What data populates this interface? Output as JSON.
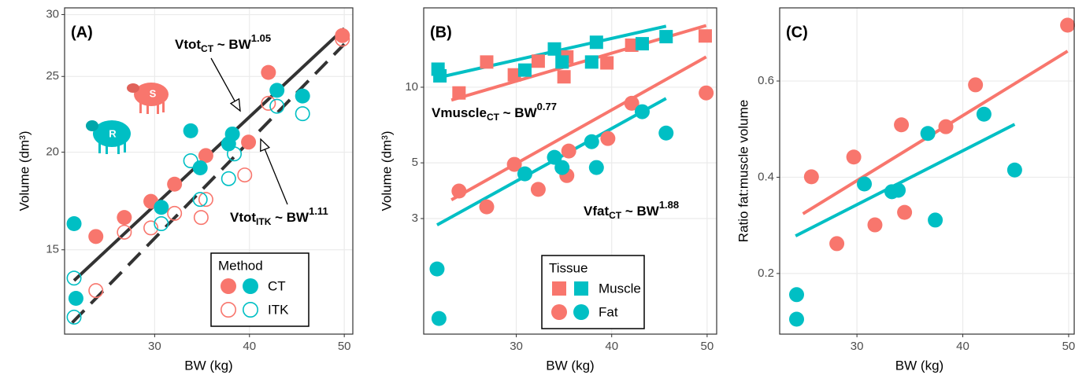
{
  "chart_data": [
    {
      "type": "scatter",
      "panel_label": "(A)",
      "xlabel": "BW (kg)",
      "ylabel": "Volume  (dm³)",
      "xlim": [
        20.5,
        50.9
      ],
      "ylim": [
        11.7,
        30.6
      ],
      "log_y": true,
      "grid": true,
      "xticks": [
        30,
        40,
        50
      ],
      "yticks": [
        15,
        20,
        25,
        30
      ],
      "legend_title": "Method",
      "icon_labels": [
        "S",
        "R"
      ],
      "series": [
        {
          "name": "CT",
          "color": "#F8766D",
          "shape": "circle",
          "filled": true,
          "x": [
            23.8,
            26.8,
            29.6,
            32.1,
            35.4,
            39.9,
            42.0,
            49.8
          ],
          "y": [
            15.6,
            16.5,
            17.3,
            18.2,
            19.8,
            20.6,
            25.3,
            28.2
          ]
        },
        {
          "name": "CT",
          "color": "#00BFC4",
          "shape": "circle",
          "filled": true,
          "x": [
            21.5,
            21.7,
            30.7,
            33.8,
            34.8,
            37.8,
            38.2,
            42.9,
            45.6
          ],
          "y": [
            16.2,
            13.0,
            17.0,
            21.3,
            19.1,
            20.5,
            21.1,
            24.0,
            23.6
          ]
        },
        {
          "name": "ITK",
          "color": "#F8766D",
          "shape": "circle",
          "filled": false,
          "x": [
            23.8,
            26.8,
            29.6,
            32.1,
            34.9,
            35.4,
            39.5,
            42.0,
            49.8
          ],
          "y": [
            13.3,
            15.8,
            16.0,
            16.7,
            16.5,
            17.4,
            18.7,
            23.1,
            27.9
          ]
        },
        {
          "name": "ITK",
          "color": "#00BFC4",
          "shape": "circle",
          "filled": false,
          "x": [
            21.5,
            21.5,
            30.7,
            33.8,
            34.8,
            37.8,
            38.4,
            42.9,
            45.6
          ],
          "y": [
            13.8,
            12.3,
            16.2,
            19.5,
            17.4,
            18.5,
            19.9,
            22.9,
            22.4
          ]
        }
      ],
      "fit_lines": [
        {
          "color": "#333333",
          "dashed": false,
          "x": [
            21.5,
            50.0
          ],
          "y": [
            13.7,
            28.8
          ]
        },
        {
          "color": "#333333",
          "dashed": true,
          "x": [
            21.3,
            50.0
          ],
          "y": [
            12.1,
            27.5
          ]
        }
      ],
      "annotations": [
        {
          "base": "Vtot",
          "sub": "CT",
          "rel": " ~ BW",
          "sup": "1.05"
        },
        {
          "base": "Vtot",
          "sub": "ITK",
          "rel": " ~ BW",
          "sup": "1.11"
        }
      ]
    },
    {
      "type": "scatter",
      "panel_label": "(B)",
      "xlabel": "BW (kg)",
      "ylabel": "Volume  (dm³)",
      "xlim": [
        20.3,
        51.0
      ],
      "ylim": [
        1.04,
        20.7
      ],
      "log_y": true,
      "grid": true,
      "xticks": [
        30,
        40,
        50
      ],
      "yticks": [
        3,
        5,
        10
      ],
      "legend_title": "Tissue",
      "series": [
        {
          "name": "Muscle",
          "color": "#F8766D",
          "shape": "square",
          "filled": true,
          "x": [
            24.0,
            26.9,
            29.8,
            32.3,
            35.3,
            35.0,
            39.5,
            42.1,
            49.8
          ],
          "y": [
            9.49,
            12.6,
            11.2,
            12.7,
            13.2,
            11.0,
            12.5,
            14.7,
            16.0
          ]
        },
        {
          "name": "Muscle",
          "color": "#00BFC4",
          "shape": "square",
          "filled": true,
          "x": [
            21.8,
            22.0,
            30.9,
            34.0,
            34.8,
            37.9,
            38.4,
            43.2,
            45.7
          ],
          "y": [
            11.8,
            11.1,
            11.7,
            14.2,
            12.6,
            12.6,
            15.1,
            14.9,
            15.9
          ]
        },
        {
          "name": "Fat",
          "color": "#F8766D",
          "shape": "circle",
          "filled": true,
          "x": [
            24.0,
            26.9,
            29.8,
            32.3,
            35.3,
            35.5,
            39.6,
            42.1,
            49.9
          ],
          "y": [
            3.86,
            3.34,
            4.93,
            3.92,
            4.45,
            5.57,
            6.25,
            8.63,
            9.49
          ]
        },
        {
          "name": "Fat",
          "color": "#00BFC4",
          "shape": "circle",
          "filled": true,
          "x": [
            21.7,
            21.9,
            30.9,
            34.0,
            34.8,
            37.9,
            38.4,
            43.2,
            45.7
          ],
          "y": [
            1.89,
            1.2,
            4.52,
            5.26,
            4.79,
            6.07,
            4.79,
            7.99,
            6.57
          ]
        }
      ],
      "fit_lines": [
        {
          "color": "#F8766D",
          "dashed": false,
          "x": [
            23.2,
            49.9
          ],
          "y": [
            8.89,
            17.6
          ]
        },
        {
          "color": "#00BFC4",
          "dashed": false,
          "x": [
            21.7,
            45.7
          ],
          "y": [
            10.9,
            17.5
          ]
        },
        {
          "color": "#F8766D",
          "dashed": false,
          "x": [
            23.2,
            49.9
          ],
          "y": [
            3.56,
            13.2
          ]
        },
        {
          "color": "#00BFC4",
          "dashed": false,
          "x": [
            21.7,
            45.7
          ],
          "y": [
            2.83,
            9.02
          ]
        }
      ],
      "annotations": [
        {
          "base": "Vmuscle",
          "sub": "CT",
          "rel": " ~ BW",
          "sup": "0.77"
        },
        {
          "base": "Vfat",
          "sub": "CT",
          "rel": " ~ BW",
          "sup": "1.88"
        }
      ]
    },
    {
      "type": "scatter",
      "panel_label": "(C)",
      "xlabel": "BW (kg)",
      "ylabel": "Ratio fat:muscle volume",
      "xlim": [
        22.7,
        50.6
      ],
      "ylim": [
        0.074,
        0.752
      ],
      "log_y": false,
      "grid": true,
      "xticks": [
        30,
        40,
        50
      ],
      "yticks": [
        0.2,
        0.4,
        0.6
      ],
      "series": [
        {
          "color": "#F8766D",
          "shape": "circle",
          "filled": true,
          "x": [
            25.7,
            28.1,
            29.7,
            31.7,
            34.2,
            34.5,
            38.4,
            41.2,
            49.9
          ],
          "y": [
            0.401,
            0.262,
            0.442,
            0.301,
            0.509,
            0.327,
            0.505,
            0.592,
            0.716
          ]
        },
        {
          "color": "#00BFC4",
          "shape": "circle",
          "filled": true,
          "x": [
            24.3,
            24.3,
            30.7,
            33.3,
            33.9,
            36.7,
            37.4,
            42.0,
            44.9
          ],
          "y": [
            0.156,
            0.105,
            0.386,
            0.37,
            0.373,
            0.491,
            0.311,
            0.531,
            0.415
          ]
        }
      ],
      "fit_lines": [
        {
          "color": "#F8766D",
          "dashed": false,
          "x": [
            24.9,
            49.9
          ],
          "y": [
            0.324,
            0.662
          ]
        },
        {
          "color": "#00BFC4",
          "dashed": false,
          "x": [
            24.2,
            44.9
          ],
          "y": [
            0.278,
            0.51
          ]
        }
      ]
    }
  ]
}
